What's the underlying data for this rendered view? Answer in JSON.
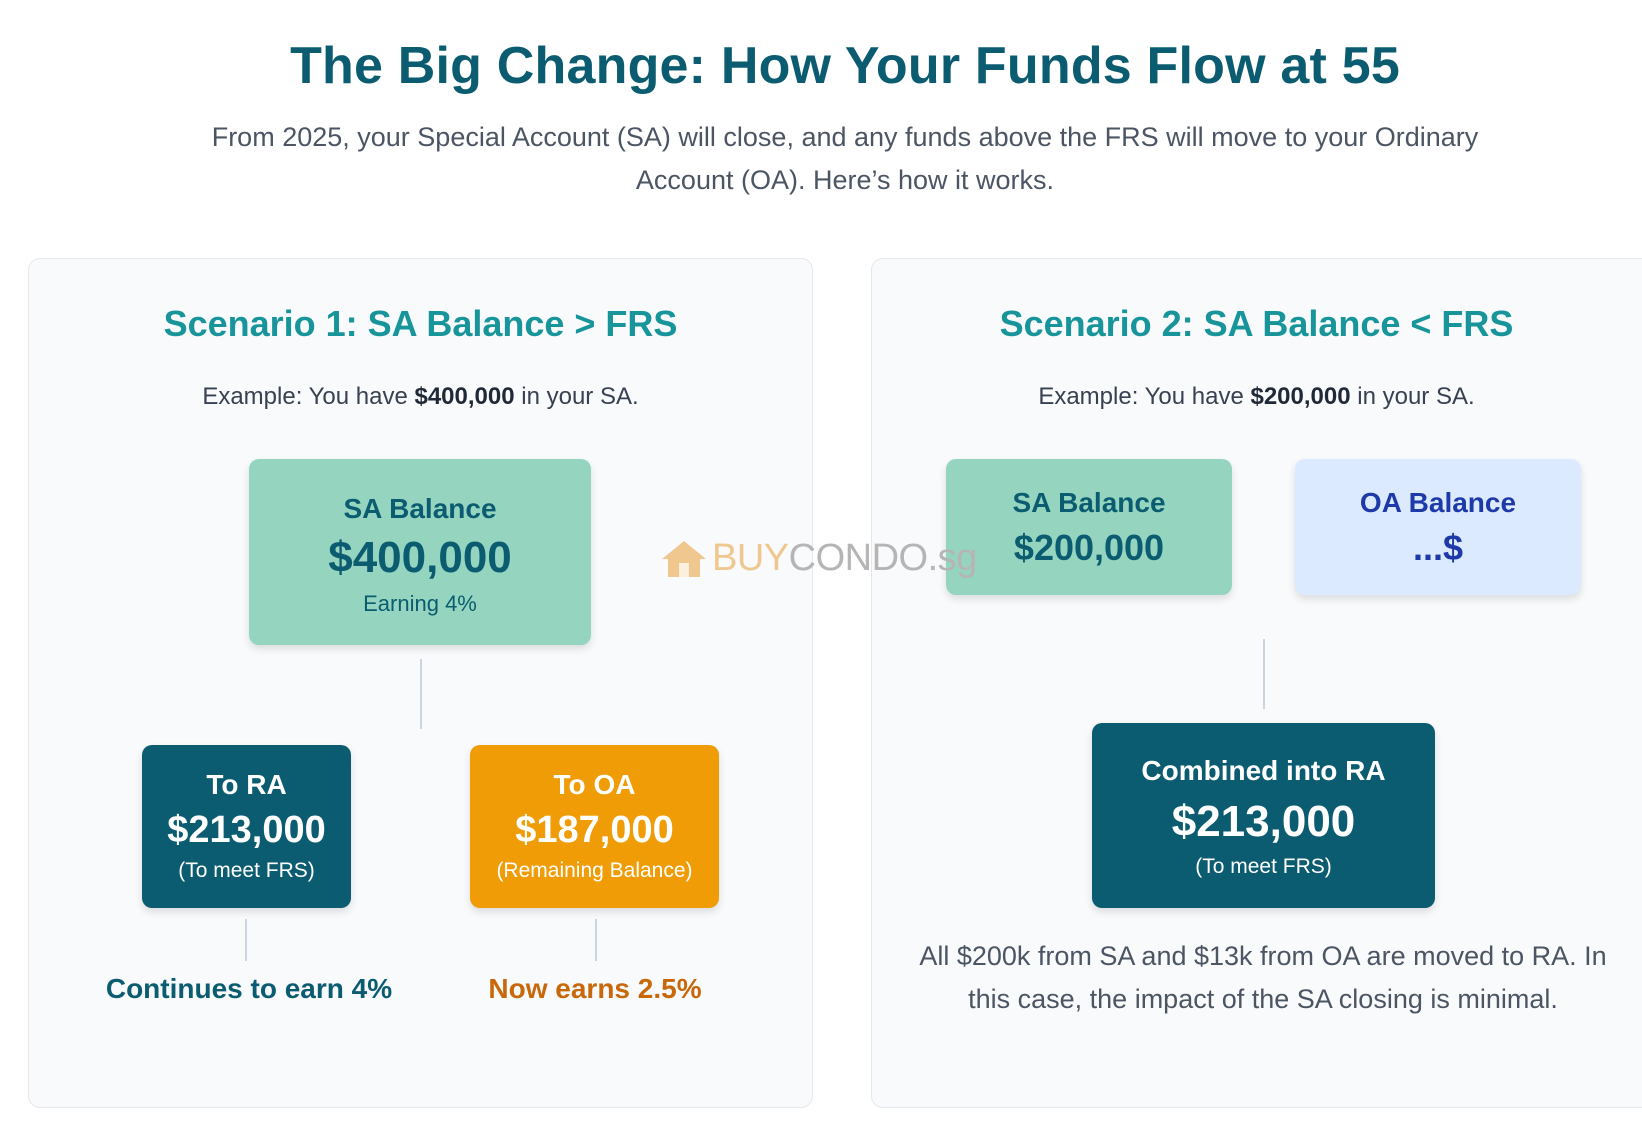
{
  "header": {
    "title": "The Big Change: How Your Funds Flow at 55",
    "subtitle": "From 2025, your Special Account (SA) will close, and any funds above the FRS will move to your Ordinary Account (OA). Here’s how it works."
  },
  "scenario1": {
    "title": "Scenario 1: SA Balance > FRS",
    "example_prefix": "Example: You have ",
    "example_amount": "$400,000",
    "example_suffix": " in your SA.",
    "source": {
      "label": "SA Balance",
      "amount": "$400,000",
      "note": "Earning 4%"
    },
    "to_ra": {
      "label": "To RA",
      "amount": "$213,000",
      "note": "(To meet FRS)",
      "outcome": "Continues to earn 4%"
    },
    "to_oa": {
      "label": "To OA",
      "amount": "$187,000",
      "note": "(Remaining Balance)",
      "outcome": "Now earns 2.5%"
    }
  },
  "scenario2": {
    "title": "Scenario 2: SA Balance < FRS",
    "example_prefix": "Example: You have ",
    "example_amount": "$200,000",
    "example_suffix": " in your SA.",
    "sa": {
      "label": "SA Balance",
      "amount": "$200,000"
    },
    "oa": {
      "label": "OA Balance",
      "amount": "...$"
    },
    "combined": {
      "label": "Combined into RA",
      "amount": "$213,000",
      "note": "(To meet FRS)"
    },
    "explanation": "All $200k from SA and $13k from OA are moved to RA. In this case, the impact of the SA closing is minimal."
  },
  "watermark": {
    "buy": "BUY",
    "condo": "CONDO",
    "sg": ".sg",
    "icon": "house-icon"
  },
  "colors": {
    "title": "#0b5c70",
    "scenario_title": "#17959a",
    "teal_box": "#95d5bf",
    "dark_box": "#0b5c70",
    "orange_box": "#ef9c07",
    "blue_box": "#dbeafe",
    "outcome_ra": "#0b5c70",
    "outcome_oa": "#c9680a"
  }
}
